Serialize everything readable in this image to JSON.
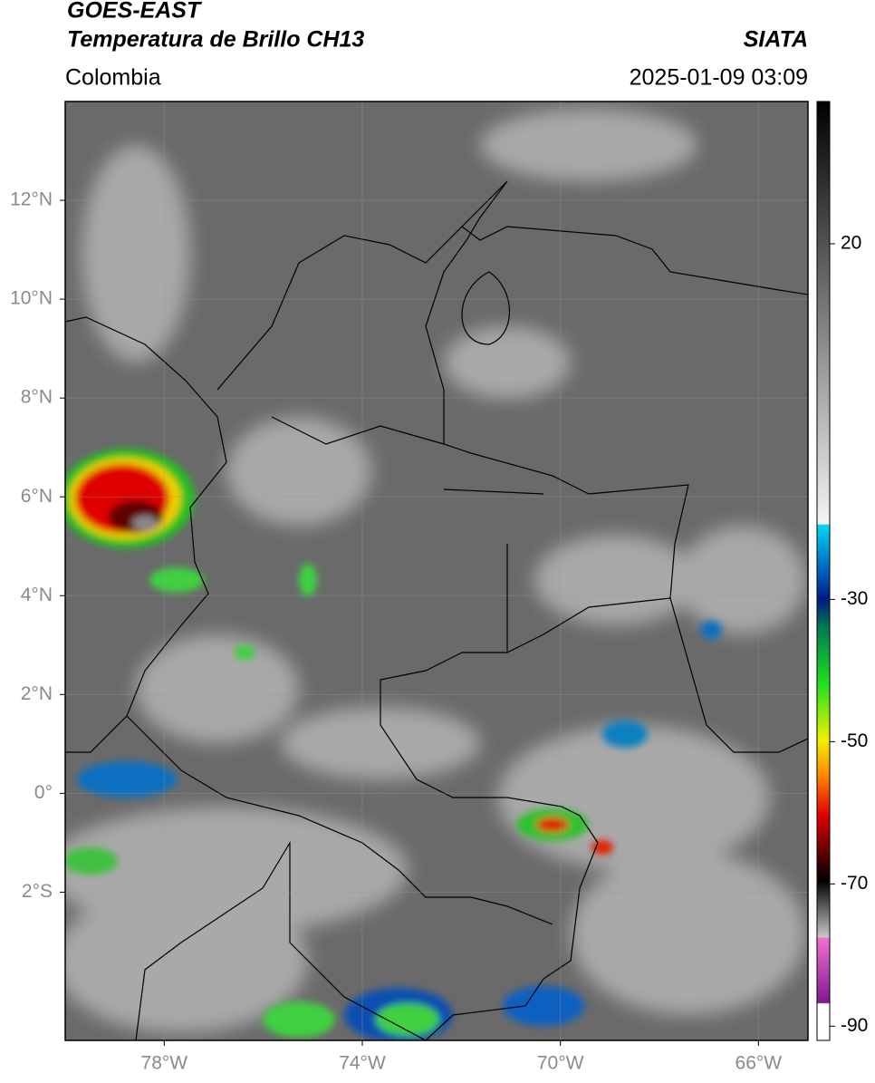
{
  "header": {
    "title": "GOES-EAST",
    "subtitle": "Temperatura de Brillo CH13",
    "source": "SIATA",
    "region": "Colombia",
    "datetime": "2025-01-09 03:09"
  },
  "map": {
    "xlim": [
      -80,
      -65
    ],
    "ylim": [
      -5,
      14
    ],
    "xticks": [
      {
        "value": -78,
        "label": "78°W"
      },
      {
        "value": -74,
        "label": "74°W"
      },
      {
        "value": -70,
        "label": "70°W"
      },
      {
        "value": -66,
        "label": "66°W"
      }
    ],
    "yticks": [
      {
        "value": 12,
        "label": "12°N"
      },
      {
        "value": 10,
        "label": "10°N"
      },
      {
        "value": 8,
        "label": "8°N"
      },
      {
        "value": 6,
        "label": "6°N"
      },
      {
        "value": 4,
        "label": "4°N"
      },
      {
        "value": 2,
        "label": "2°N"
      },
      {
        "value": 0,
        "label": "0°"
      },
      {
        "value": -2,
        "label": "2°S"
      }
    ]
  },
  "colorbar": {
    "lim": [
      -92,
      40
    ],
    "ticks": [
      20,
      -30,
      -50,
      -70,
      -90
    ]
  }
}
